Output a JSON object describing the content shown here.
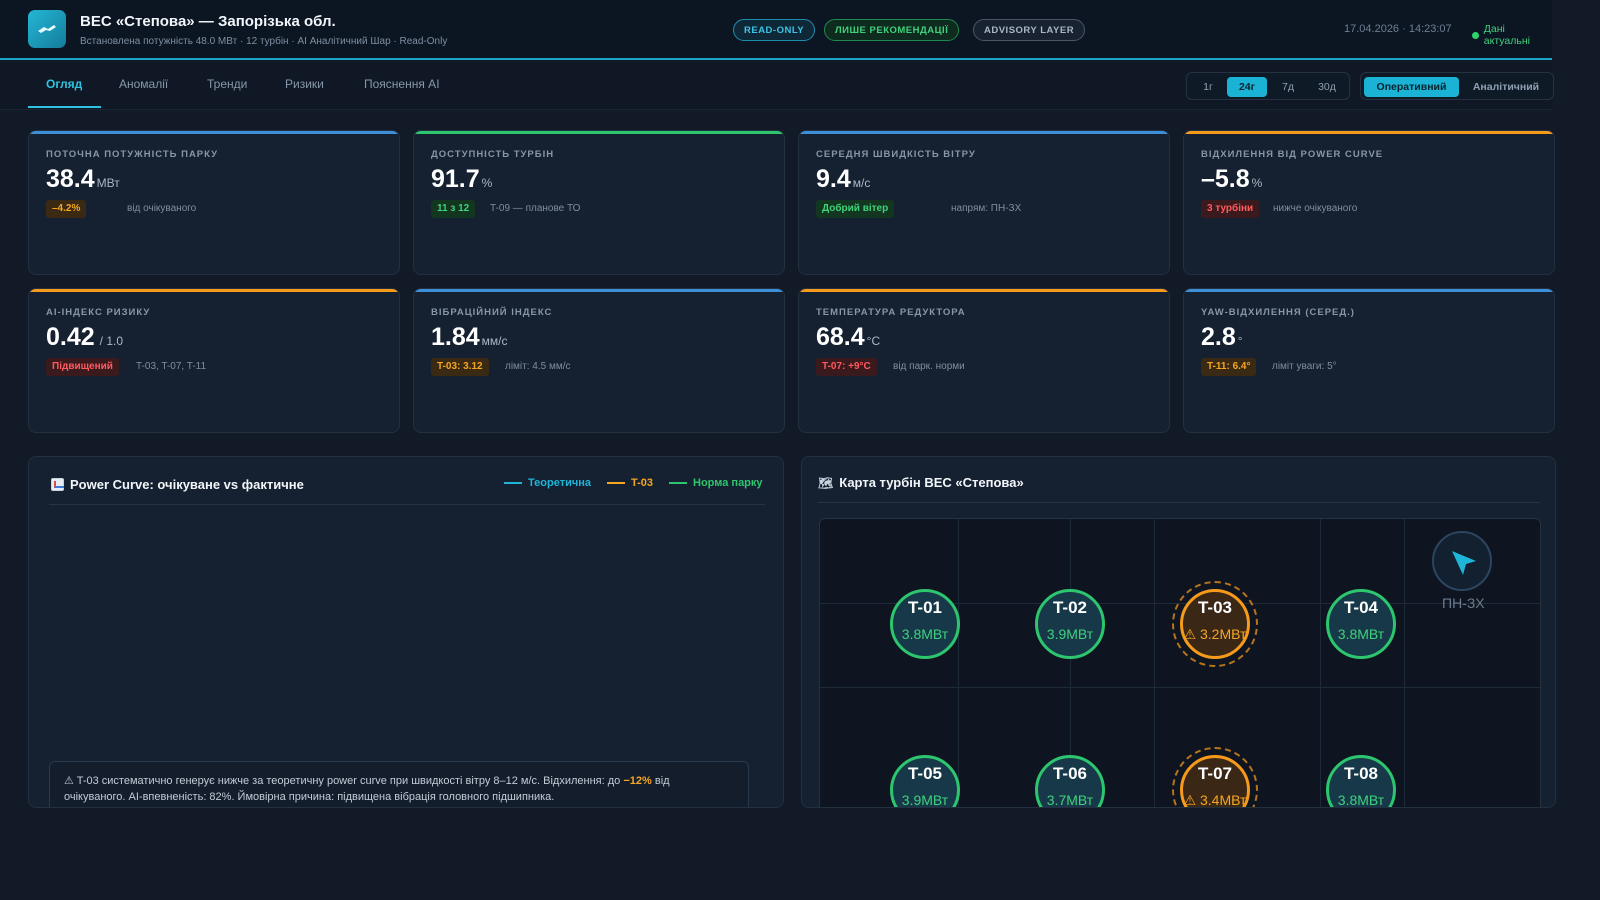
{
  "header": {
    "title": "ВЕС «Степова» — Запорізька обл.",
    "subtitle": "Встановлена потужність 48.0 МВт · 12 турбін · AI Аналітичний Шар · Read-Only",
    "pills": {
      "readonly": "READ-ONLY",
      "recommendations": "ЛИШЕ РЕКОМЕНДАЦІЇ",
      "advisory": "ADVISORY LAYER"
    },
    "timestamp": "17.04.2026 · 14:23:07",
    "status": "Дані актуальні"
  },
  "tabs": [
    "Огляд",
    "Аномалії",
    "Тренди",
    "Ризики",
    "Пояснення AI"
  ],
  "ranges": [
    "1г",
    "24г",
    "7д",
    "30д"
  ],
  "modes": [
    "Оперативний",
    "Аналітичний"
  ],
  "kpis": [
    {
      "label": "ПОТОЧНА ПОТУЖНІСТЬ ПАРКУ",
      "value": "38.4",
      "unit": "МВт",
      "badge": "–4.2%",
      "note": "від очікуваного",
      "accent": "#3d8fd8"
    },
    {
      "label": "ДОСТУПНІСТЬ ТУРБІН",
      "value": "91.7",
      "unit": "%",
      "badge": "11 з 12",
      "note": "T-09 — планове ТО",
      "accent": "#2dc56e"
    },
    {
      "label": "СЕРЕДНЯ ШВИДКІСТЬ ВІТРУ",
      "value": "9.4",
      "unit": "м/с",
      "badge": "Добрий вітер",
      "note": "напрям: ПН-ЗХ",
      "accent": "#3d8fd8"
    },
    {
      "label": "ВІДХИЛЕННЯ ВІД POWER CURVE",
      "value": "–5.8",
      "unit": "%",
      "badge": "3 турбіни",
      "note": "нижче очікуваного",
      "accent": "#f59a1b"
    },
    {
      "label": "AI-ІНДЕКС РИЗИКУ",
      "value": "0.42",
      "unit": "/ 1.0",
      "badge": "Підвищений",
      "note": "T-03, T-07, T-11",
      "accent": "#f59a1b"
    },
    {
      "label": "ВІБРАЦІЙНИЙ ІНДЕКС",
      "value": "1.84",
      "unit": "мм/с",
      "badge": "T-03: 3.12",
      "note": "ліміт: 4.5 мм/с",
      "accent": "#3d8fd8"
    },
    {
      "label": "ТЕМПЕРАТУРА РЕДУКТОРА",
      "value": "68.4",
      "unit": "°C",
      "badge": "T-07: +9°C",
      "note": "від парк. норми",
      "accent": "#f59a1b"
    },
    {
      "label": "YAW-ВІДХИЛЕННЯ (СЕРЕД.)",
      "value": "2.8",
      "unit": "°",
      "badge": "T-11: 6.4°",
      "note": "ліміт уваги: 5°",
      "accent": "#3d8fd8"
    }
  ],
  "power_curve": {
    "title": "Power Curve: очікуване vs фактичне",
    "legend": [
      {
        "name": "Теоретична",
        "color": "#1fb5d8"
      },
      {
        "name": "T-03",
        "color": "#f5a623"
      },
      {
        "name": "Норма парку",
        "color": "#2dc56e"
      }
    ],
    "insight_prefix": "⚠ T-03 систематично генерує нижче за теоретичну power curve при швидкості вітру 8–12 м/с. Відхилення: до ",
    "insight_highlight": "−12%",
    "insight_suffix": " від очікуваного. AI-впевненість: 82%. Ймовірна причина: підвищена вібрація головного підшипника."
  },
  "map": {
    "title": "Карта турбін ВЕС «Степова»",
    "wind_direction": "ПН-ЗХ",
    "turbines": [
      {
        "id": "T-01",
        "power": "3.8МВт",
        "status": "ok"
      },
      {
        "id": "T-02",
        "power": "3.9МВт",
        "status": "ok"
      },
      {
        "id": "T-03",
        "power": "⚠ 3.2МВт",
        "status": "warn"
      },
      {
        "id": "T-04",
        "power": "3.8МВт",
        "status": "ok"
      },
      {
        "id": "T-05",
        "power": "3.9МВт",
        "status": "ok"
      },
      {
        "id": "T-06",
        "power": "3.7МВт",
        "status": "ok"
      },
      {
        "id": "T-07",
        "power": "⚠ 3.4МВт",
        "status": "warn"
      },
      {
        "id": "T-08",
        "power": "3.8МВт",
        "status": "ok"
      }
    ]
  }
}
